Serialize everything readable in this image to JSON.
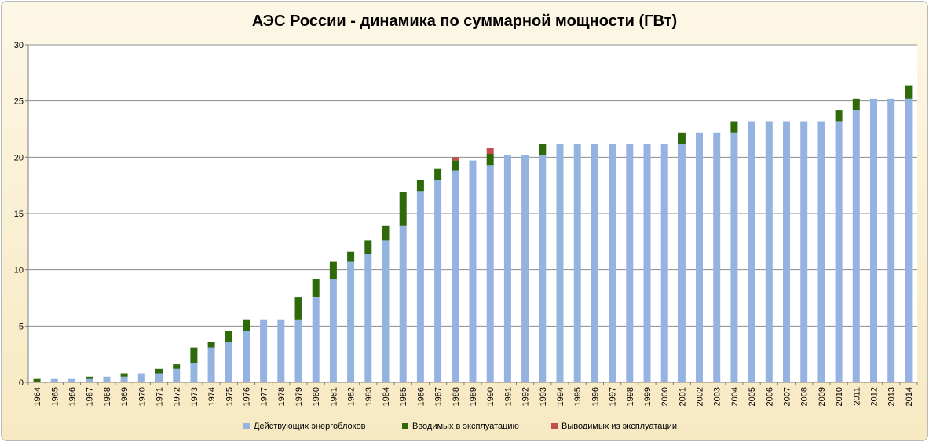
{
  "chart_data": {
    "type": "bar",
    "stacked": true,
    "title": "АЭС России - динамика по суммарной мощности (ГВт)",
    "xlabel": "",
    "ylabel": "",
    "ylim": [
      0,
      30
    ],
    "yticks": [
      0,
      5,
      10,
      15,
      20,
      25,
      30
    ],
    "grid": true,
    "legend_position": "bottom",
    "categories": [
      "1964",
      "1965",
      "1966",
      "1967",
      "1968",
      "1969",
      "1970",
      "1971",
      "1972",
      "1973",
      "1974",
      "1975",
      "1976",
      "1977",
      "1978",
      "1979",
      "1980",
      "1981",
      "1982",
      "1983",
      "1984",
      "1985",
      "1986",
      "1987",
      "1988",
      "1989",
      "1990",
      "1991",
      "1992",
      "1993",
      "1994",
      "1995",
      "1996",
      "1997",
      "1998",
      "1999",
      "2000",
      "2001",
      "2002",
      "2003",
      "2004",
      "2005",
      "2006",
      "2007",
      "2008",
      "2009",
      "2010",
      "2011",
      "2012",
      "2013",
      "2014"
    ],
    "series": [
      {
        "name": "Действующих энергоблоков",
        "color": "#95b3e0",
        "values": [
          0,
          0.3,
          0.3,
          0.3,
          0.5,
          0.5,
          0.8,
          0.8,
          1.2,
          1.7,
          3.1,
          3.6,
          4.6,
          5.6,
          5.6,
          5.6,
          7.6,
          9.2,
          10.7,
          11.4,
          12.6,
          13.9,
          17.0,
          18.0,
          18.8,
          19.7,
          19.3,
          20.2,
          20.2,
          20.2,
          21.2,
          21.2,
          21.2,
          21.2,
          21.2,
          21.2,
          21.2,
          21.2,
          22.2,
          22.2,
          22.2,
          23.2,
          23.2,
          23.2,
          23.2,
          23.2,
          23.2,
          24.2,
          25.2,
          25.2,
          25.2
        ]
      },
      {
        "name": "Вводимых в эксплуатацию",
        "color": "#2e6a0a",
        "values": [
          0.3,
          0,
          0,
          0.2,
          0,
          0.3,
          0,
          0.4,
          0.4,
          1.4,
          0.5,
          1.0,
          1.0,
          0,
          0,
          2.0,
          1.6,
          1.5,
          0.9,
          1.2,
          1.3,
          3.0,
          1.0,
          1.0,
          0.9,
          0,
          1.0,
          0,
          0,
          1.0,
          0,
          0,
          0,
          0,
          0,
          0,
          0,
          1.0,
          0,
          0,
          1.0,
          0,
          0,
          0,
          0,
          0,
          1.0,
          1.0,
          0,
          0,
          1.2
        ]
      },
      {
        "name": "Выводимых из эксплуатации",
        "color": "#c0504d",
        "values": [
          0,
          0,
          0,
          0,
          0,
          0,
          0,
          0,
          0,
          0,
          0,
          0,
          0,
          0,
          0,
          0,
          0,
          0,
          0,
          0,
          0,
          0,
          0,
          0,
          0.3,
          0,
          0.5,
          0,
          0,
          0,
          0,
          0,
          0,
          0,
          0,
          0,
          0,
          0,
          0,
          0,
          0,
          0,
          0,
          0,
          0,
          0,
          0,
          0,
          0,
          0,
          0
        ]
      }
    ]
  }
}
